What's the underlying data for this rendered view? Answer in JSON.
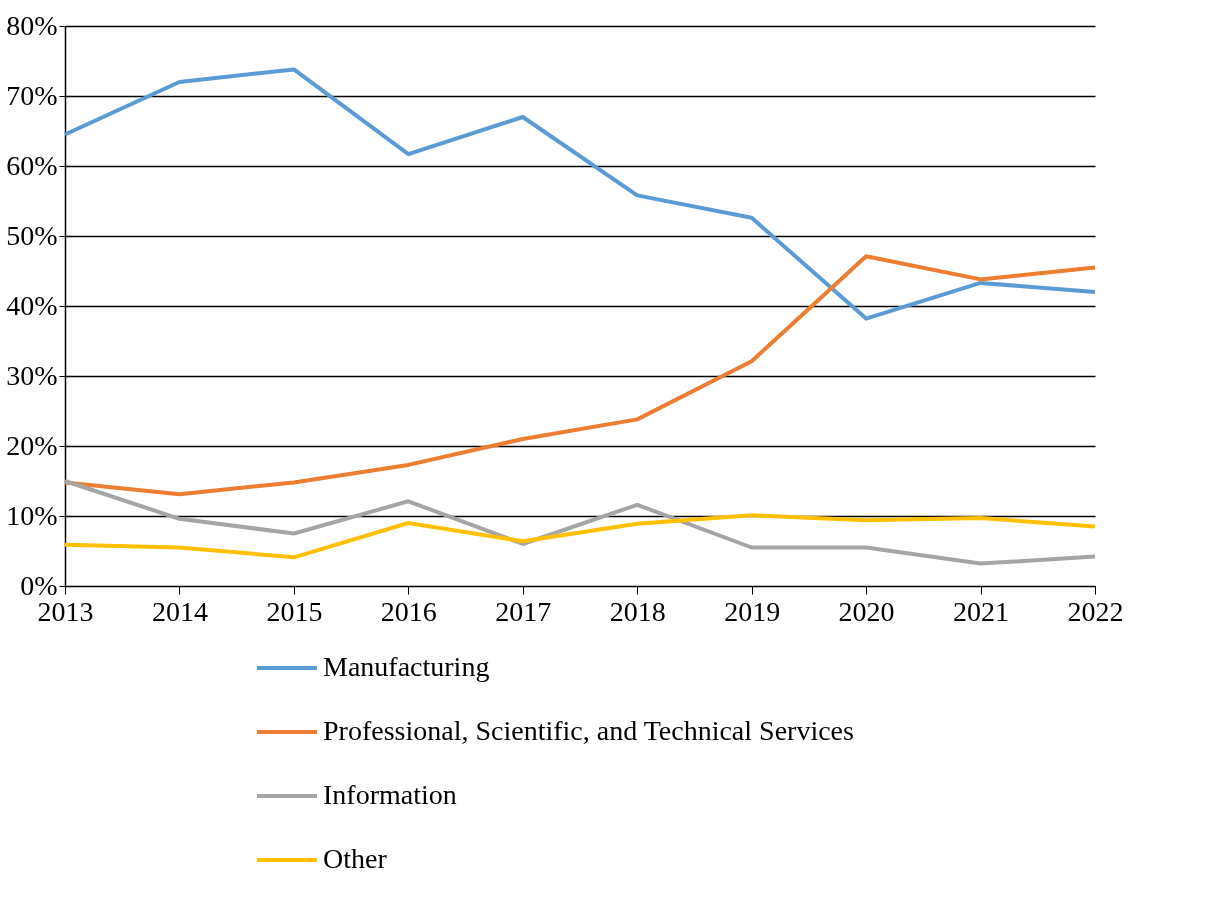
{
  "chart_data": {
    "type": "line",
    "categories": [
      "2013",
      "2014",
      "2015",
      "2016",
      "2017",
      "2018",
      "2019",
      "2020",
      "2021",
      "2022"
    ],
    "series": [
      {
        "name": "Manufacturing",
        "color": "#5b9bd5",
        "values": [
          64.5,
          72.0,
          73.8,
          61.7,
          67.0,
          55.8,
          52.6,
          38.2,
          43.3,
          42.0
        ]
      },
      {
        "name": "Professional, Scientific, and Technical Services",
        "color": "#ed7d31",
        "values": [
          14.8,
          13.1,
          14.8,
          17.3,
          21.0,
          23.8,
          32.1,
          47.1,
          43.8,
          45.5
        ]
      },
      {
        "name": "Information",
        "color": "#a5a5a5",
        "values": [
          15.0,
          9.6,
          7.5,
          12.1,
          6.0,
          11.6,
          5.5,
          5.5,
          3.2,
          4.2
        ]
      },
      {
        "name": "Other",
        "color": "#ffc000",
        "values": [
          5.9,
          5.5,
          4.1,
          9.0,
          6.4,
          8.9,
          10.1,
          9.4,
          9.7,
          8.5
        ]
      }
    ],
    "ylim": [
      0,
      80
    ],
    "yticks": [
      {
        "value": 0,
        "label": "0%"
      },
      {
        "value": 10,
        "label": "10%"
      },
      {
        "value": 20,
        "label": "20%"
      },
      {
        "value": 30,
        "label": "30%"
      },
      {
        "value": 40,
        "label": "40%"
      },
      {
        "value": 50,
        "label": "50%"
      },
      {
        "value": 60,
        "label": "60%"
      },
      {
        "value": 70,
        "label": "70%"
      },
      {
        "value": 80,
        "label": "80%"
      }
    ],
    "grid": "y",
    "legend": "bottom",
    "marker": "none",
    "line_style": "solid"
  }
}
